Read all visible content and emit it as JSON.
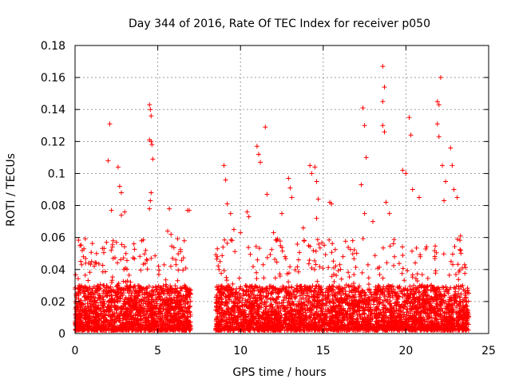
{
  "chart_data": {
    "type": "scatter",
    "title": "Day 344 of 2016, Rate Of TEC Index for receiver p050",
    "xlabel": "GPS time / hours",
    "ylabel": "ROTI / TECUs",
    "xlim": [
      0,
      25
    ],
    "ylim": [
      0,
      0.18
    ],
    "x_ticks": [
      0,
      5,
      10,
      15,
      20,
      25
    ],
    "y_ticks": [
      0,
      0.02,
      0.04,
      0.06,
      0.08,
      0.1,
      0.12,
      0.14,
      0.16,
      0.18
    ],
    "x_tick_labels": [
      "0",
      "5",
      "10",
      "15",
      "20",
      "25"
    ],
    "y_tick_labels": [
      "0",
      "0.02",
      "0.04",
      "0.06",
      "0.08",
      "0.1",
      "0.12",
      "0.14",
      "0.16",
      "0.18"
    ],
    "grid": true,
    "marker": "+",
    "marker_color": "#ff0000",
    "series": [
      {
        "name": "p050",
        "points": [
          [
            0.3,
            0.055
          ],
          [
            0.4,
            0.043
          ],
          [
            0.5,
            0.048
          ],
          [
            1.0,
            0.045
          ],
          [
            1.3,
            0.05
          ],
          [
            1.9,
            0.057
          ],
          [
            2.0,
            0.108
          ],
          [
            2.1,
            0.131
          ],
          [
            2.2,
            0.077
          ],
          [
            2.3,
            0.058
          ],
          [
            2.5,
            0.057
          ],
          [
            2.6,
            0.104
          ],
          [
            2.7,
            0.092
          ],
          [
            2.8,
            0.088
          ],
          [
            2.8,
            0.074
          ],
          [
            3.0,
            0.076
          ],
          [
            4.5,
            0.143
          ],
          [
            4.55,
            0.14
          ],
          [
            4.6,
            0.136
          ],
          [
            4.5,
            0.121
          ],
          [
            4.6,
            0.12
          ],
          [
            4.65,
            0.118
          ],
          [
            4.7,
            0.109
          ],
          [
            4.6,
            0.088
          ],
          [
            4.55,
            0.083
          ],
          [
            4.5,
            0.078
          ],
          [
            4.6,
            0.047
          ],
          [
            5.7,
            0.078
          ],
          [
            5.6,
            0.064
          ],
          [
            5.8,
            0.062
          ],
          [
            5.9,
            0.047
          ],
          [
            6.1,
            0.043
          ],
          [
            6.6,
            0.058
          ],
          [
            6.8,
            0.077
          ],
          [
            6.9,
            0.077
          ],
          [
            8.6,
            0.053
          ],
          [
            8.6,
            0.048
          ],
          [
            8.7,
            0.04
          ],
          [
            9.0,
            0.105
          ],
          [
            9.1,
            0.096
          ],
          [
            9.2,
            0.081
          ],
          [
            9.4,
            0.075
          ],
          [
            9.6,
            0.065
          ],
          [
            10.0,
            0.063
          ],
          [
            10.4,
            0.076
          ],
          [
            10.5,
            0.073
          ],
          [
            11.0,
            0.117
          ],
          [
            11.1,
            0.112
          ],
          [
            11.2,
            0.107
          ],
          [
            11.5,
            0.129
          ],
          [
            11.6,
            0.087
          ],
          [
            12.0,
            0.063
          ],
          [
            12.5,
            0.075
          ],
          [
            12.9,
            0.097
          ],
          [
            13.0,
            0.091
          ],
          [
            13.1,
            0.085
          ],
          [
            13.8,
            0.066
          ],
          [
            14.2,
            0.105
          ],
          [
            14.3,
            0.1
          ],
          [
            14.5,
            0.104
          ],
          [
            14.6,
            0.095
          ],
          [
            14.7,
            0.084
          ],
          [
            14.6,
            0.072
          ],
          [
            15.4,
            0.082
          ],
          [
            15.5,
            0.081
          ],
          [
            17.4,
            0.141
          ],
          [
            17.5,
            0.13
          ],
          [
            17.6,
            0.11
          ],
          [
            17.3,
            0.093
          ],
          [
            17.5,
            0.075
          ],
          [
            18.0,
            0.07
          ],
          [
            18.6,
            0.167
          ],
          [
            18.7,
            0.154
          ],
          [
            18.6,
            0.145
          ],
          [
            18.6,
            0.13
          ],
          [
            18.7,
            0.126
          ],
          [
            18.8,
            0.082
          ],
          [
            19.0,
            0.075
          ],
          [
            19.8,
            0.102
          ],
          [
            20.0,
            0.1
          ],
          [
            20.2,
            0.135
          ],
          [
            20.3,
            0.124
          ],
          [
            20.4,
            0.09
          ],
          [
            20.8,
            0.085
          ],
          [
            21.9,
            0.145
          ],
          [
            22.0,
            0.143
          ],
          [
            21.9,
            0.131
          ],
          [
            22.0,
            0.123
          ],
          [
            22.1,
            0.16
          ],
          [
            22.2,
            0.105
          ],
          [
            22.4,
            0.095
          ],
          [
            22.3,
            0.083
          ],
          [
            22.7,
            0.116
          ],
          [
            22.8,
            0.105
          ],
          [
            22.9,
            0.09
          ],
          [
            23.1,
            0.085
          ],
          [
            23.3,
            0.061
          ]
        ]
      }
    ],
    "dense_band": {
      "segments": [
        [
          0,
          7.0
        ],
        [
          8.5,
          23.8
        ]
      ],
      "baseline_min": 0.002,
      "baseline_max": 0.03,
      "spike_max": 0.06
    }
  }
}
